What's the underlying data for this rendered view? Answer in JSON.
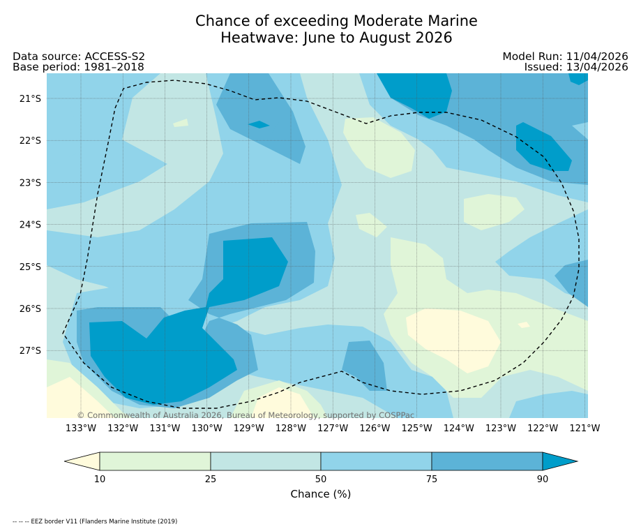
{
  "title_line1": "Chance of exceeding Moderate Marine",
  "title_line2": "Heatwave: June to August 2026",
  "data_source": "Data source: ACCESS-S2",
  "base_period": "Base period: 1981–2018",
  "model_run": "Model Run: 11/04/2026",
  "issued": "Issued: 13/04/2026",
  "copyright": "© Commonwealth of Australia 2026, Bureau of Meteorology, supported by COSPPac",
  "lat_labels": [
    "21°S",
    "22°S",
    "23°S",
    "24°S",
    "25°S",
    "26°S",
    "27°S"
  ],
  "lon_labels": [
    "133°W",
    "132°W",
    "131°W",
    "130°W",
    "129°W",
    "128°W",
    "127°W",
    "126°W",
    "125°W",
    "124°W",
    "123°W",
    "122°W",
    "121°W"
  ],
  "colorbar": {
    "label": "Chance (%)",
    "ticks": [
      "10",
      "25",
      "50",
      "75",
      "90"
    ],
    "colors": [
      "#fffbdc",
      "#e0f5d8",
      "#c2e6e4",
      "#91d4ea",
      "#5cb3d7",
      "#009dca"
    ]
  },
  "eez_note": "-- -- -- EEZ border V11 (Flanders Marine Institute (2019)",
  "legend_levels": [
    {
      "range": "< 10",
      "color": "#fffbdc"
    },
    {
      "range": "10-25",
      "color": "#e0f5d8"
    },
    {
      "range": "25-50",
      "color": "#c2e6e4"
    },
    {
      "range": "50-75",
      "color": "#91d4ea"
    },
    {
      "range": "75-90",
      "color": "#5cb3d7"
    },
    {
      "range": "> 90",
      "color": "#009dca"
    }
  ]
}
